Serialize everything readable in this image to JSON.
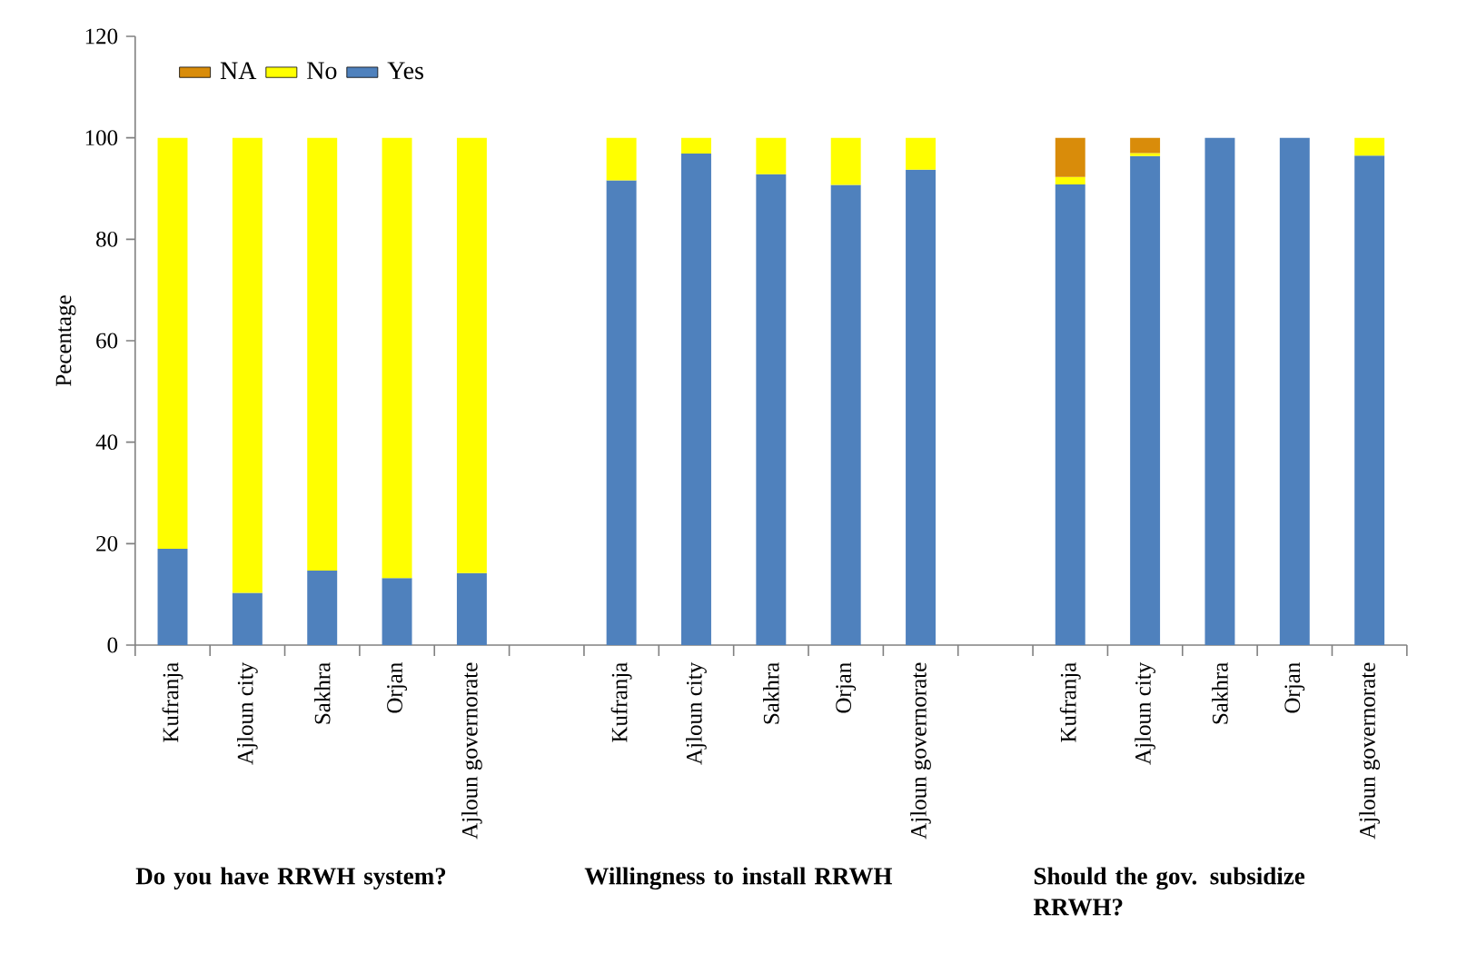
{
  "chart_data": {
    "type": "bar",
    "stacked": true,
    "ylabel": "Pecentage",
    "categories": [
      "Kufranja",
      "Ajloun city",
      "Sakhra",
      "Orjan",
      "Ajloun governorate",
      null,
      "Kufranja",
      "Ajloun city",
      "Sakhra",
      "Orjan",
      "Ajloun governorate",
      null,
      "Kufranja",
      "Ajloun city",
      "Sakhra",
      "Orjan",
      "Ajloun governorate"
    ],
    "series": [
      {
        "name": "Yes",
        "color": "#4f81bd",
        "values": [
          19,
          10.3,
          14.7,
          13.2,
          14.2,
          null,
          91.6,
          96.9,
          92.8,
          90.7,
          93.7,
          null,
          90.8,
          96.4,
          100,
          100,
          96.5
        ]
      },
      {
        "name": "No",
        "color": "#ffff00",
        "values": [
          81,
          89.7,
          85.3,
          86.8,
          85.8,
          null,
          8.4,
          3.1,
          7.2,
          9.3,
          6.3,
          null,
          1.5,
          0.6,
          null,
          null,
          3.5
        ]
      },
      {
        "name": "NA",
        "color": "#d98c0a",
        "values": [
          null,
          null,
          null,
          null,
          null,
          null,
          null,
          null,
          null,
          null,
          null,
          null,
          7.7,
          3.0,
          null,
          null,
          null
        ]
      }
    ],
    "ylim": [
      0,
      120
    ],
    "yticks": [
      0,
      20,
      40,
      60,
      80,
      100,
      120
    ],
    "legend": "top left",
    "annotations": [
      "Do you have RRWH system?",
      "Willingness to install RRWH",
      "Should the gov. subsidize RRWH?"
    ]
  }
}
